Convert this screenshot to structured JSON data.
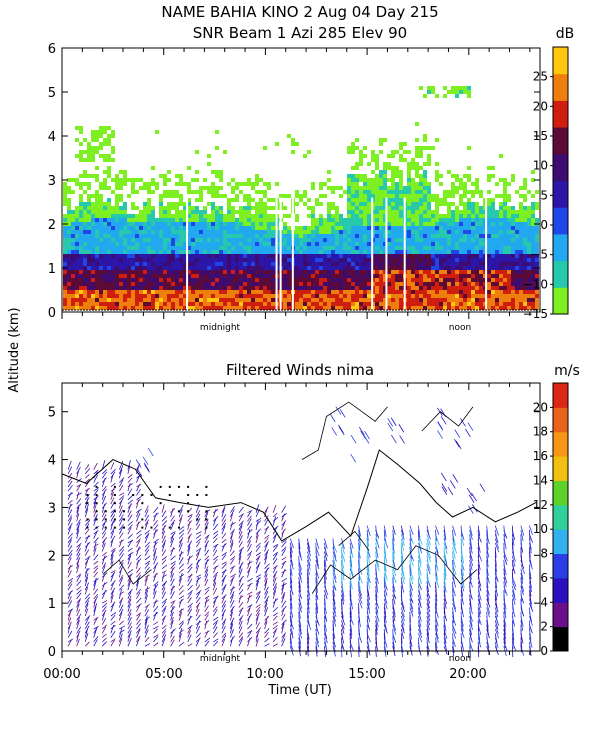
{
  "header": {
    "title_line1": "NAME BAHIA KINO    2 Aug 04 Day 215",
    "title_line2": "SNR Beam 1 Azi 285 Elev 90"
  },
  "shared": {
    "ylabel": "Altitude (km)",
    "xlabel": "Time (UT)",
    "x_tick_labels": [
      "00:00",
      "05:00",
      "10:00",
      "15:00",
      "20:00"
    ],
    "day_markers": [
      "midnight",
      "noon"
    ]
  },
  "colors": {
    "snr_scale": [
      "#7ef022",
      "#27c9ac",
      "#22a8ee",
      "#1f46e8",
      "#2c16a8",
      "#3e0c70",
      "#5c0a36",
      "#cf1d10",
      "#ef7f0c",
      "#ffc810"
    ],
    "wind_scale": [
      "#000000",
      "#6a0f8a",
      "#2a10bf",
      "#2b3ee6",
      "#33b0ee",
      "#2fd09a",
      "#5ed22a",
      "#f2c011",
      "#f59614",
      "#e9641a",
      "#de2616"
    ]
  },
  "chart_data": [
    {
      "type": "heatmap",
      "title": "SNR Beam 1 Azi 285 Elev 90",
      "ylabel": "Altitude (km)",
      "ylim": [
        0,
        6
      ],
      "yticks": [
        0,
        1,
        2,
        3,
        4,
        5,
        6
      ],
      "xlim": [
        0,
        23.5
      ],
      "colorbar": {
        "unit": "dB",
        "range": [
          -15,
          30
        ],
        "ticks": [
          25,
          20,
          15,
          10,
          5,
          0,
          -5,
          -10,
          -15
        ],
        "tick_labels": [
          "25",
          "20",
          "15",
          "10",
          "5",
          "0",
          "−5",
          "−10",
          "−15"
        ]
      },
      "layers": [
        {
          "altitude_km": [
            0.0,
            0.5
          ],
          "snr_db": [
            15,
            25
          ],
          "hours": [
            0,
            23
          ]
        },
        {
          "altitude_km": [
            0.5,
            1.2
          ],
          "snr_db": [
            5,
            15
          ],
          "hours": [
            0,
            23
          ]
        },
        {
          "altitude_km": [
            1.2,
            2.5
          ],
          "snr_db": [
            -10,
            0
          ],
          "hours": [
            0,
            23
          ]
        },
        {
          "altitude_km": [
            2.5,
            3.5
          ],
          "snr_db": [
            -15,
            -10
          ],
          "hours": [
            0,
            23
          ]
        }
      ]
    },
    {
      "type": "scatter",
      "title": "Filtered Winds nima",
      "ylabel": "Altitude (km)",
      "xlabel": "Time (UT)",
      "ylim": [
        0,
        5.6
      ],
      "yticks": [
        0,
        1,
        2,
        3,
        4,
        5
      ],
      "xlim": [
        0,
        23.5
      ],
      "x_tick_hours": [
        0,
        5,
        10,
        15,
        20
      ],
      "x_tick_labels": [
        "00:00",
        "05:00",
        "10:00",
        "15:00",
        "20:00"
      ],
      "colorbar": {
        "unit": "m/s",
        "range": [
          0,
          22
        ],
        "ticks": [
          20,
          18,
          16,
          14,
          12,
          10,
          8,
          6,
          4,
          2,
          0
        ],
        "tick_labels": [
          "20",
          "18",
          "16",
          "14",
          "12",
          "10",
          "8",
          "6",
          "4",
          "2",
          "0"
        ]
      },
      "wind_regions": [
        {
          "hours": [
            0,
            11
          ],
          "altitude_km": [
            0.1,
            3.0
          ],
          "speed_ms": [
            2,
            5
          ]
        },
        {
          "hours": [
            11,
            23
          ],
          "altitude_km": [
            0.1,
            2.8
          ],
          "speed_ms": [
            4,
            9
          ]
        },
        {
          "hours": [
            13,
            20
          ],
          "altitude_km": [
            1.5,
            2.5
          ],
          "speed_ms": [
            6,
            9
          ]
        }
      ]
    }
  ]
}
